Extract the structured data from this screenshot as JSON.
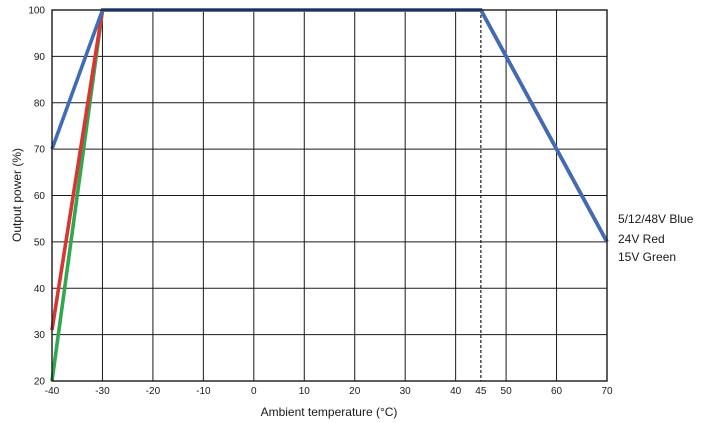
{
  "chart_data": {
    "type": "line",
    "xlabel": "Ambient temperature (°C)",
    "ylabel": "Output power (%)",
    "xlim": [
      -40,
      70
    ],
    "ylim": [
      20,
      100
    ],
    "xticks": [
      -40,
      -30,
      -20,
      -10,
      0,
      10,
      20,
      30,
      40,
      45,
      50,
      60,
      70
    ],
    "yticks": [
      20,
      30,
      40,
      50,
      60,
      70,
      80,
      90,
      100
    ],
    "grid": true,
    "series": [
      {
        "name": "5/12/48V Blue",
        "label": "5/12/48V Blue",
        "color": "#3f6cb5",
        "x": [
          -40,
          -30,
          45,
          70
        ],
        "y": [
          70,
          100,
          100,
          50
        ]
      },
      {
        "name": "15V Green",
        "label": "15V Green",
        "color": "#2fa84f",
        "x": [
          -40,
          -30,
          45,
          70
        ],
        "y": [
          20,
          100,
          100,
          50
        ]
      },
      {
        "name": "24V Red",
        "label": "24V Red",
        "color": "#d93532",
        "x": [
          -40,
          -30,
          45,
          70
        ],
        "y": [
          31,
          100,
          100,
          50
        ]
      }
    ],
    "annotations": [
      {
        "type": "vline",
        "x": 45,
        "style": "dashed"
      }
    ],
    "legend": {
      "placement": "right",
      "items": [
        "5/12/48V Blue",
        "24V Red",
        "15V Green"
      ]
    }
  }
}
